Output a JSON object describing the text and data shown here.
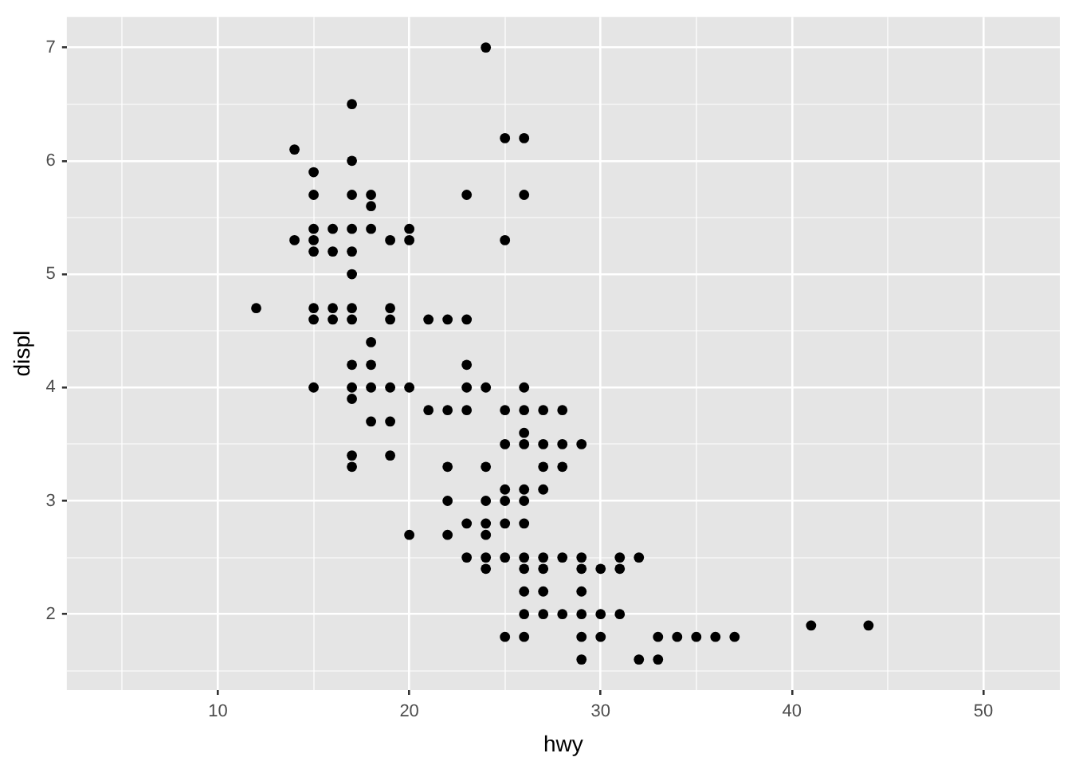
{
  "chart_data": {
    "type": "scatter",
    "xlabel": "hwy",
    "ylabel": "displ",
    "xlim": [
      2.1,
      54
    ],
    "ylim": [
      1.33,
      7.27
    ],
    "xticks": [
      {
        "value": 5,
        "label": null
      },
      10,
      {
        "value": 15,
        "label": null
      },
      20,
      {
        "value": 25,
        "label": null
      },
      30,
      {
        "value": 35,
        "label": null
      },
      40,
      {
        "value": 45,
        "label": null
      },
      50
    ],
    "yticks": [
      {
        "value": 1.5,
        "label": null
      },
      2,
      {
        "value": 2.5,
        "label": null
      },
      3,
      {
        "value": 3.5,
        "label": null
      },
      4,
      {
        "value": 4.5,
        "label": null
      },
      5,
      {
        "value": 5.5,
        "label": null
      },
      6,
      {
        "value": 6.5,
        "label": null
      },
      7
    ],
    "grid": true,
    "marker": "circle",
    "series": [
      {
        "color": "#000000",
        "x": [
          24,
          17,
          25,
          26,
          14,
          17,
          15,
          15,
          17,
          18,
          23,
          26,
          18,
          15,
          16,
          17,
          18,
          20,
          14,
          15,
          19,
          20,
          25,
          15,
          16,
          17,
          17,
          12,
          15,
          16,
          17,
          19,
          15,
          16,
          17,
          19,
          21,
          22,
          23,
          18,
          17,
          18,
          23,
          15,
          17,
          18,
          19,
          20,
          23,
          24,
          26,
          17,
          21,
          22,
          23,
          25,
          26,
          27,
          28,
          18,
          19,
          26,
          25,
          26,
          27,
          28,
          29,
          17,
          19,
          17,
          22,
          24,
          27,
          28,
          25,
          26,
          27,
          22,
          24,
          25,
          26,
          23,
          24,
          25,
          26,
          20,
          22,
          24,
          23,
          24,
          25,
          26,
          27,
          28,
          29,
          31,
          32,
          24,
          26,
          27,
          29,
          30,
          31,
          26,
          27,
          29,
          26,
          27,
          28,
          29,
          30,
          31,
          41,
          44,
          25,
          26,
          29,
          30,
          33,
          34,
          35,
          36,
          37,
          29,
          32,
          33
        ],
        "values": [
          7,
          6.5,
          6.2,
          6.2,
          6.1,
          6,
          5.9,
          5.7,
          5.7,
          5.7,
          5.7,
          5.7,
          5.6,
          5.4,
          5.4,
          5.4,
          5.4,
          5.4,
          5.3,
          5.3,
          5.3,
          5.3,
          5.3,
          5.2,
          5.2,
          5.2,
          5,
          4.7,
          4.7,
          4.7,
          4.7,
          4.7,
          4.6,
          4.6,
          4.6,
          4.6,
          4.6,
          4.6,
          4.6,
          4.4,
          4.2,
          4.2,
          4.2,
          4,
          4,
          4,
          4,
          4,
          4,
          4,
          4,
          3.9,
          3.8,
          3.8,
          3.8,
          3.8,
          3.8,
          3.8,
          3.8,
          3.7,
          3.7,
          3.6,
          3.5,
          3.5,
          3.5,
          3.5,
          3.5,
          3.4,
          3.4,
          3.3,
          3.3,
          3.3,
          3.3,
          3.3,
          3.1,
          3.1,
          3.1,
          3,
          3,
          3,
          3,
          2.8,
          2.8,
          2.8,
          2.8,
          2.7,
          2.7,
          2.7,
          2.5,
          2.5,
          2.5,
          2.5,
          2.5,
          2.5,
          2.5,
          2.5,
          2.5,
          2.4,
          2.4,
          2.4,
          2.4,
          2.4,
          2.4,
          2.2,
          2.2,
          2.2,
          2,
          2,
          2,
          2,
          2,
          2,
          1.9,
          1.9,
          1.8,
          1.8,
          1.8,
          1.8,
          1.8,
          1.8,
          1.8,
          1.8,
          1.8,
          1.6,
          1.6,
          1.6
        ]
      }
    ]
  }
}
